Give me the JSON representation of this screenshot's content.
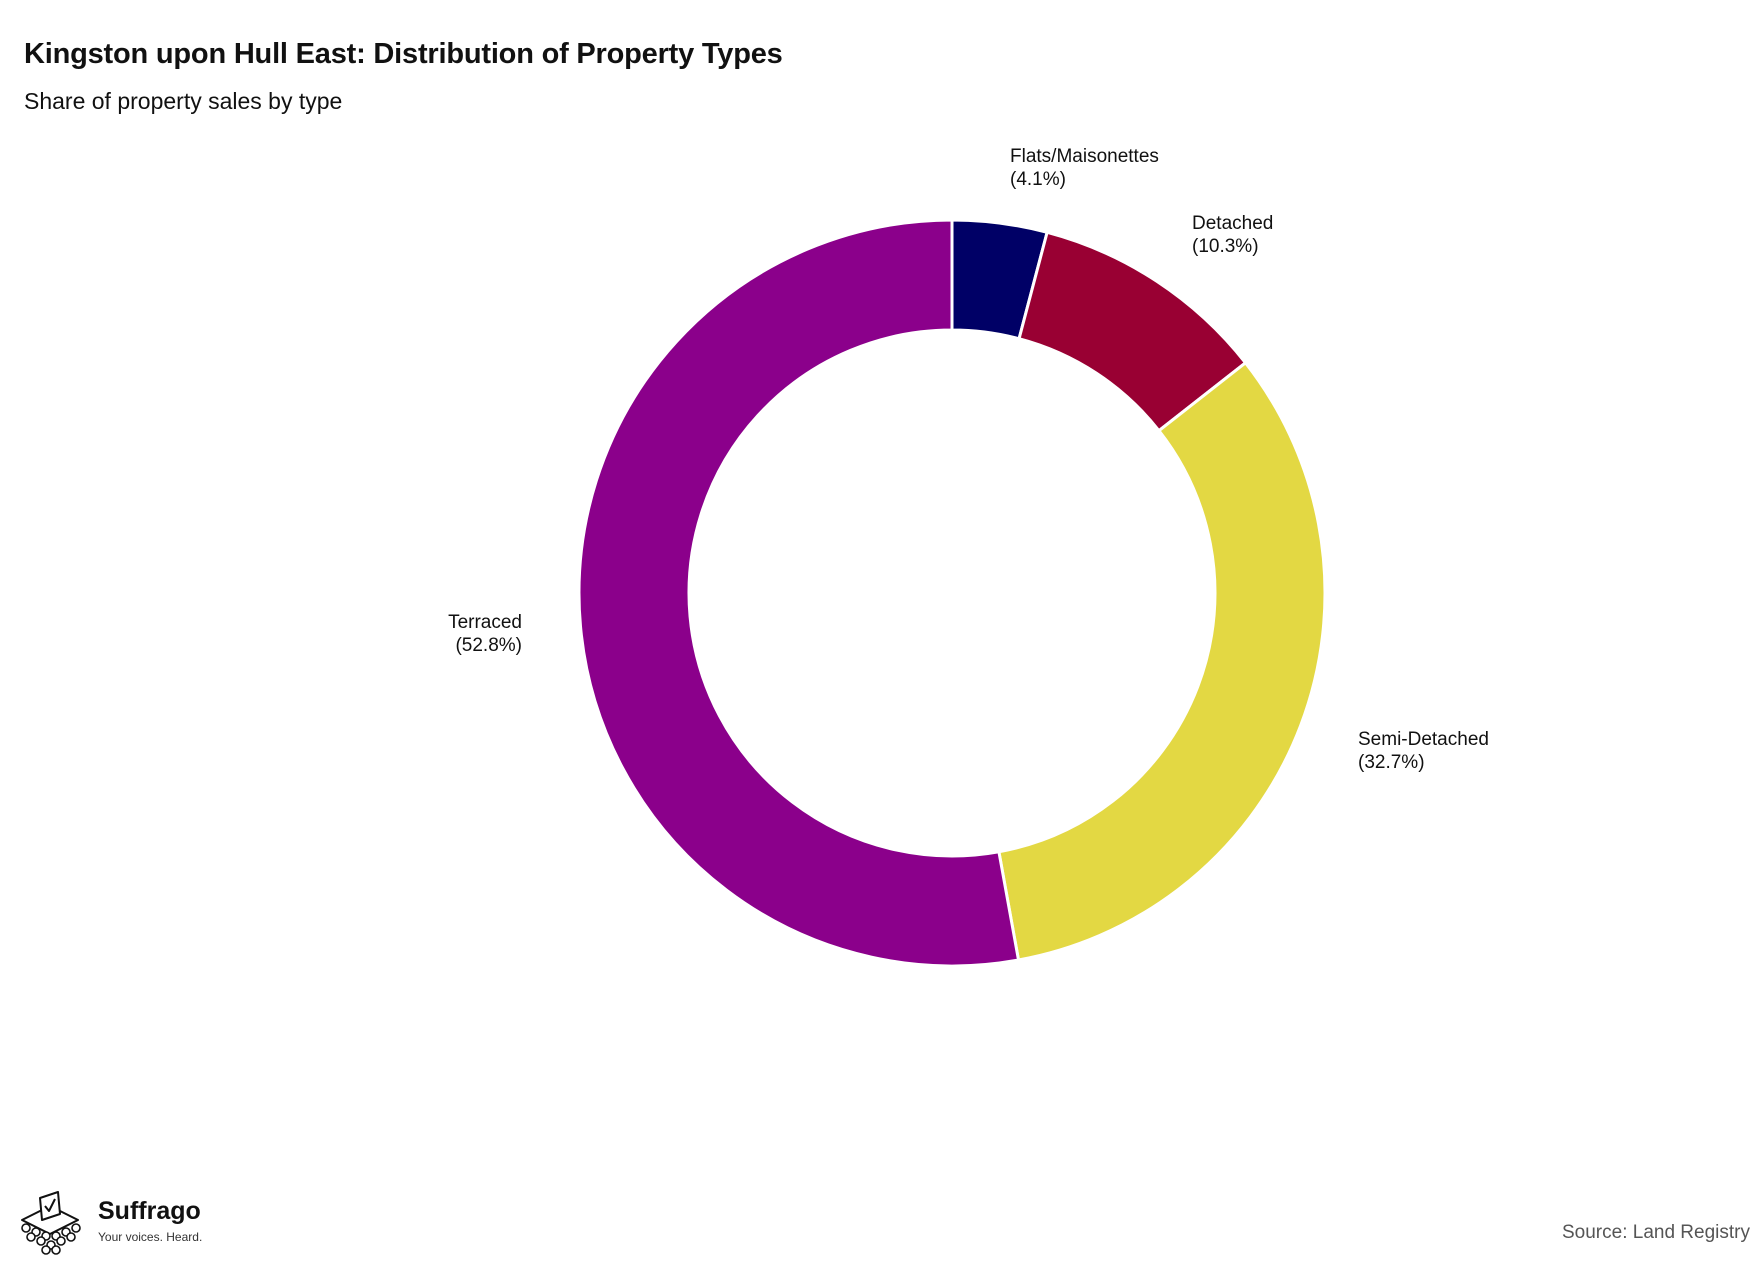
{
  "header": {
    "title": "Kingston upon Hull East: Distribution of Property Types",
    "subtitle": "Share of property sales by type"
  },
  "chart_data": {
    "type": "pie",
    "donut": true,
    "title": "Kingston upon Hull East: Distribution of Property Types",
    "subtitle": "Share of property sales by type",
    "unit": "%",
    "start": "12 o'clock",
    "direction": "clockwise",
    "legend": "none",
    "slices": [
      {
        "label": "Flats/Maisonettes",
        "value": 4.1,
        "value_label": "(4.1%)",
        "color": "#000066"
      },
      {
        "label": "Detached",
        "value": 10.3,
        "value_label": "(10.3%)",
        "color": "#990033"
      },
      {
        "label": "Semi-Detached",
        "value": 32.7,
        "value_label": "(32.7%)",
        "color": "#e3d843"
      },
      {
        "label": "Terraced",
        "value": 52.8,
        "value_label": "(52.8%)",
        "color": "#8b008b"
      }
    ]
  },
  "footer": {
    "brand_name": "Suffrago",
    "brand_tagline": "Your voices. Heard.",
    "source": "Source: Land Registry"
  }
}
